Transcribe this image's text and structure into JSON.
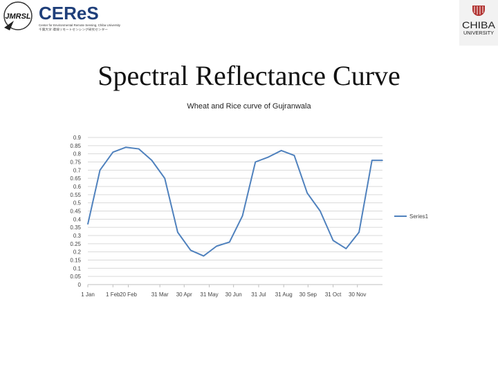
{
  "header": {
    "jmrsl_logo_text": "JMRSL",
    "ceres_logo_text": "CEReS",
    "ceres_subtitle_en": "Center for Environmental Remote Sensing, Chiba University",
    "ceres_subtitle_jp": "千葉大学 環境リモートセンシング研究センター",
    "chiba_logo_line1": "CHIBA",
    "chiba_logo_line2": "UNIVERSITY"
  },
  "slide": {
    "title": "Spectral Reflectance Curve"
  },
  "colors": {
    "line": "#4f81bd",
    "grid": "#d9d9d9",
    "ceres_blue": "#1f3f7a",
    "ceres_green": "#3aa84a",
    "chiba_red": "#b0312f"
  },
  "chart_data": {
    "type": "line",
    "title": "Wheat and  Rice curve of Gujranwala",
    "xlabel": "",
    "ylabel": "",
    "ylim": [
      0,
      0.9
    ],
    "ytick_step": 0.05,
    "yticks": [
      "0",
      "0.05",
      "0.1",
      "0.15",
      "0.2",
      "0.25",
      "0.3",
      "0.35",
      "0.4",
      "0.45",
      "0.5",
      "0.55",
      "0.6",
      "0.65",
      "0.7",
      "0.75",
      "0.8",
      "0.85",
      "0.9"
    ],
    "xticks": [
      "1 Jan",
      "1 Feb",
      "20 Feb",
      "31 Mar",
      "30 Apr",
      "31 May",
      "30 Jun",
      "31 Jul",
      "31 Aug",
      "30 Sep",
      "31 Oct",
      "30 Nov"
    ],
    "xtick_days": [
      1,
      32,
      51,
      90,
      120,
      151,
      181,
      212,
      243,
      273,
      304,
      334
    ],
    "xlim_days": [
      1,
      365
    ],
    "grid": true,
    "legend_position": "right",
    "series": [
      {
        "name": "Series1",
        "x_days": [
          1,
          16,
          32,
          48,
          64,
          80,
          96,
          112,
          128,
          144,
          160,
          176,
          192,
          208,
          224,
          240,
          256,
          272,
          288,
          304,
          320,
          336,
          352,
          365
        ],
        "values": [
          0.37,
          0.7,
          0.81,
          0.84,
          0.83,
          0.76,
          0.65,
          0.32,
          0.21,
          0.175,
          0.235,
          0.26,
          0.42,
          0.75,
          0.78,
          0.82,
          0.79,
          0.56,
          0.45,
          0.27,
          0.22,
          0.32,
          0.76,
          0.76
        ]
      }
    ]
  }
}
